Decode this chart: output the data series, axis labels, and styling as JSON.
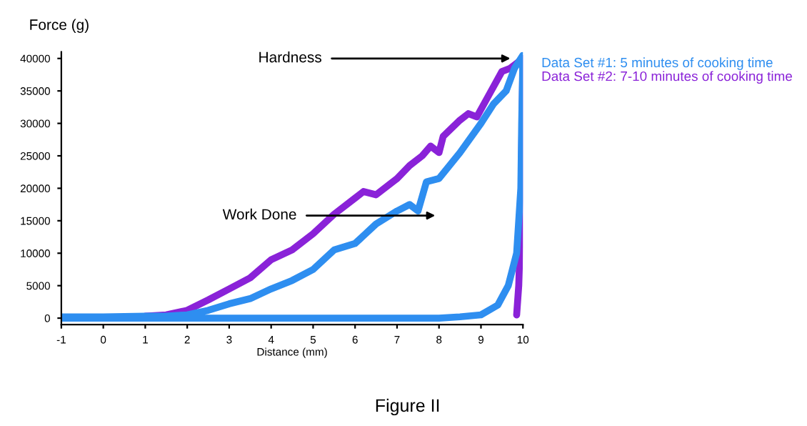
{
  "chart_data": {
    "type": "line",
    "xlabel": "Distance (mm)",
    "ylabel": "Force (g)",
    "xlim": [
      -1,
      10
    ],
    "xticks": [
      -1,
      0,
      1,
      2,
      3,
      4,
      5,
      6,
      7,
      8,
      9,
      10
    ],
    "ylim": [
      -1000,
      41000
    ],
    "yticks": [
      0,
      5000,
      10000,
      15000,
      20000,
      25000,
      30000,
      35000,
      40000
    ],
    "grid": false,
    "legend": "right",
    "line_style": "solid",
    "marker": "none",
    "series": [
      {
        "name": "Data Set #2: 7-10 minutes of cooking time",
        "color": "#8a22d8",
        "x": [
          1,
          1.5,
          2,
          2.5,
          3,
          3.5,
          4,
          4.5,
          5,
          5.5,
          6,
          6.2,
          6.5,
          7,
          7.3,
          7.6,
          7.8,
          8,
          8.1,
          8.5,
          8.7,
          8.9,
          9.2,
          9.5,
          9.7,
          9.9,
          10,
          9.98,
          9.95,
          9.9,
          9.85
        ],
        "values": [
          300,
          500,
          1200,
          2800,
          4500,
          6200,
          9000,
          10500,
          13000,
          16000,
          18500,
          19500,
          19000,
          21500,
          23500,
          25000,
          26500,
          25500,
          28000,
          30500,
          31500,
          31000,
          34500,
          38000,
          38500,
          39500,
          40000,
          30000,
          15000,
          5000,
          500
        ]
      },
      {
        "name": "Data Set #1: 5 minutes of cooking time",
        "color": "#2e8ef0",
        "x": [
          -1,
          0,
          1,
          1.5,
          2,
          2.5,
          3,
          3.5,
          4,
          4.5,
          5,
          5.5,
          6,
          6.5,
          7,
          7.3,
          7.5,
          7.7,
          8,
          8.5,
          9,
          9.3,
          9.6,
          9.8,
          10,
          9.97,
          9.95,
          9.85,
          9.65,
          9.4,
          9,
          8.5,
          8,
          7,
          5,
          3,
          1,
          -1
        ],
        "values": [
          200,
          200,
          300,
          300,
          500,
          1200,
          2200,
          3000,
          4500,
          5800,
          7500,
          10500,
          11500,
          14500,
          16500,
          17500,
          16500,
          21000,
          21500,
          25500,
          30000,
          33000,
          35000,
          38500,
          40500,
          30000,
          20000,
          10000,
          5000,
          2000,
          500,
          200,
          0,
          0,
          0,
          0,
          0,
          0
        ]
      }
    ],
    "annotations": [
      {
        "text": "Hardness",
        "x": 9.7,
        "y": 40000
      },
      "Work Done",
      "Figure II"
    ]
  }
}
